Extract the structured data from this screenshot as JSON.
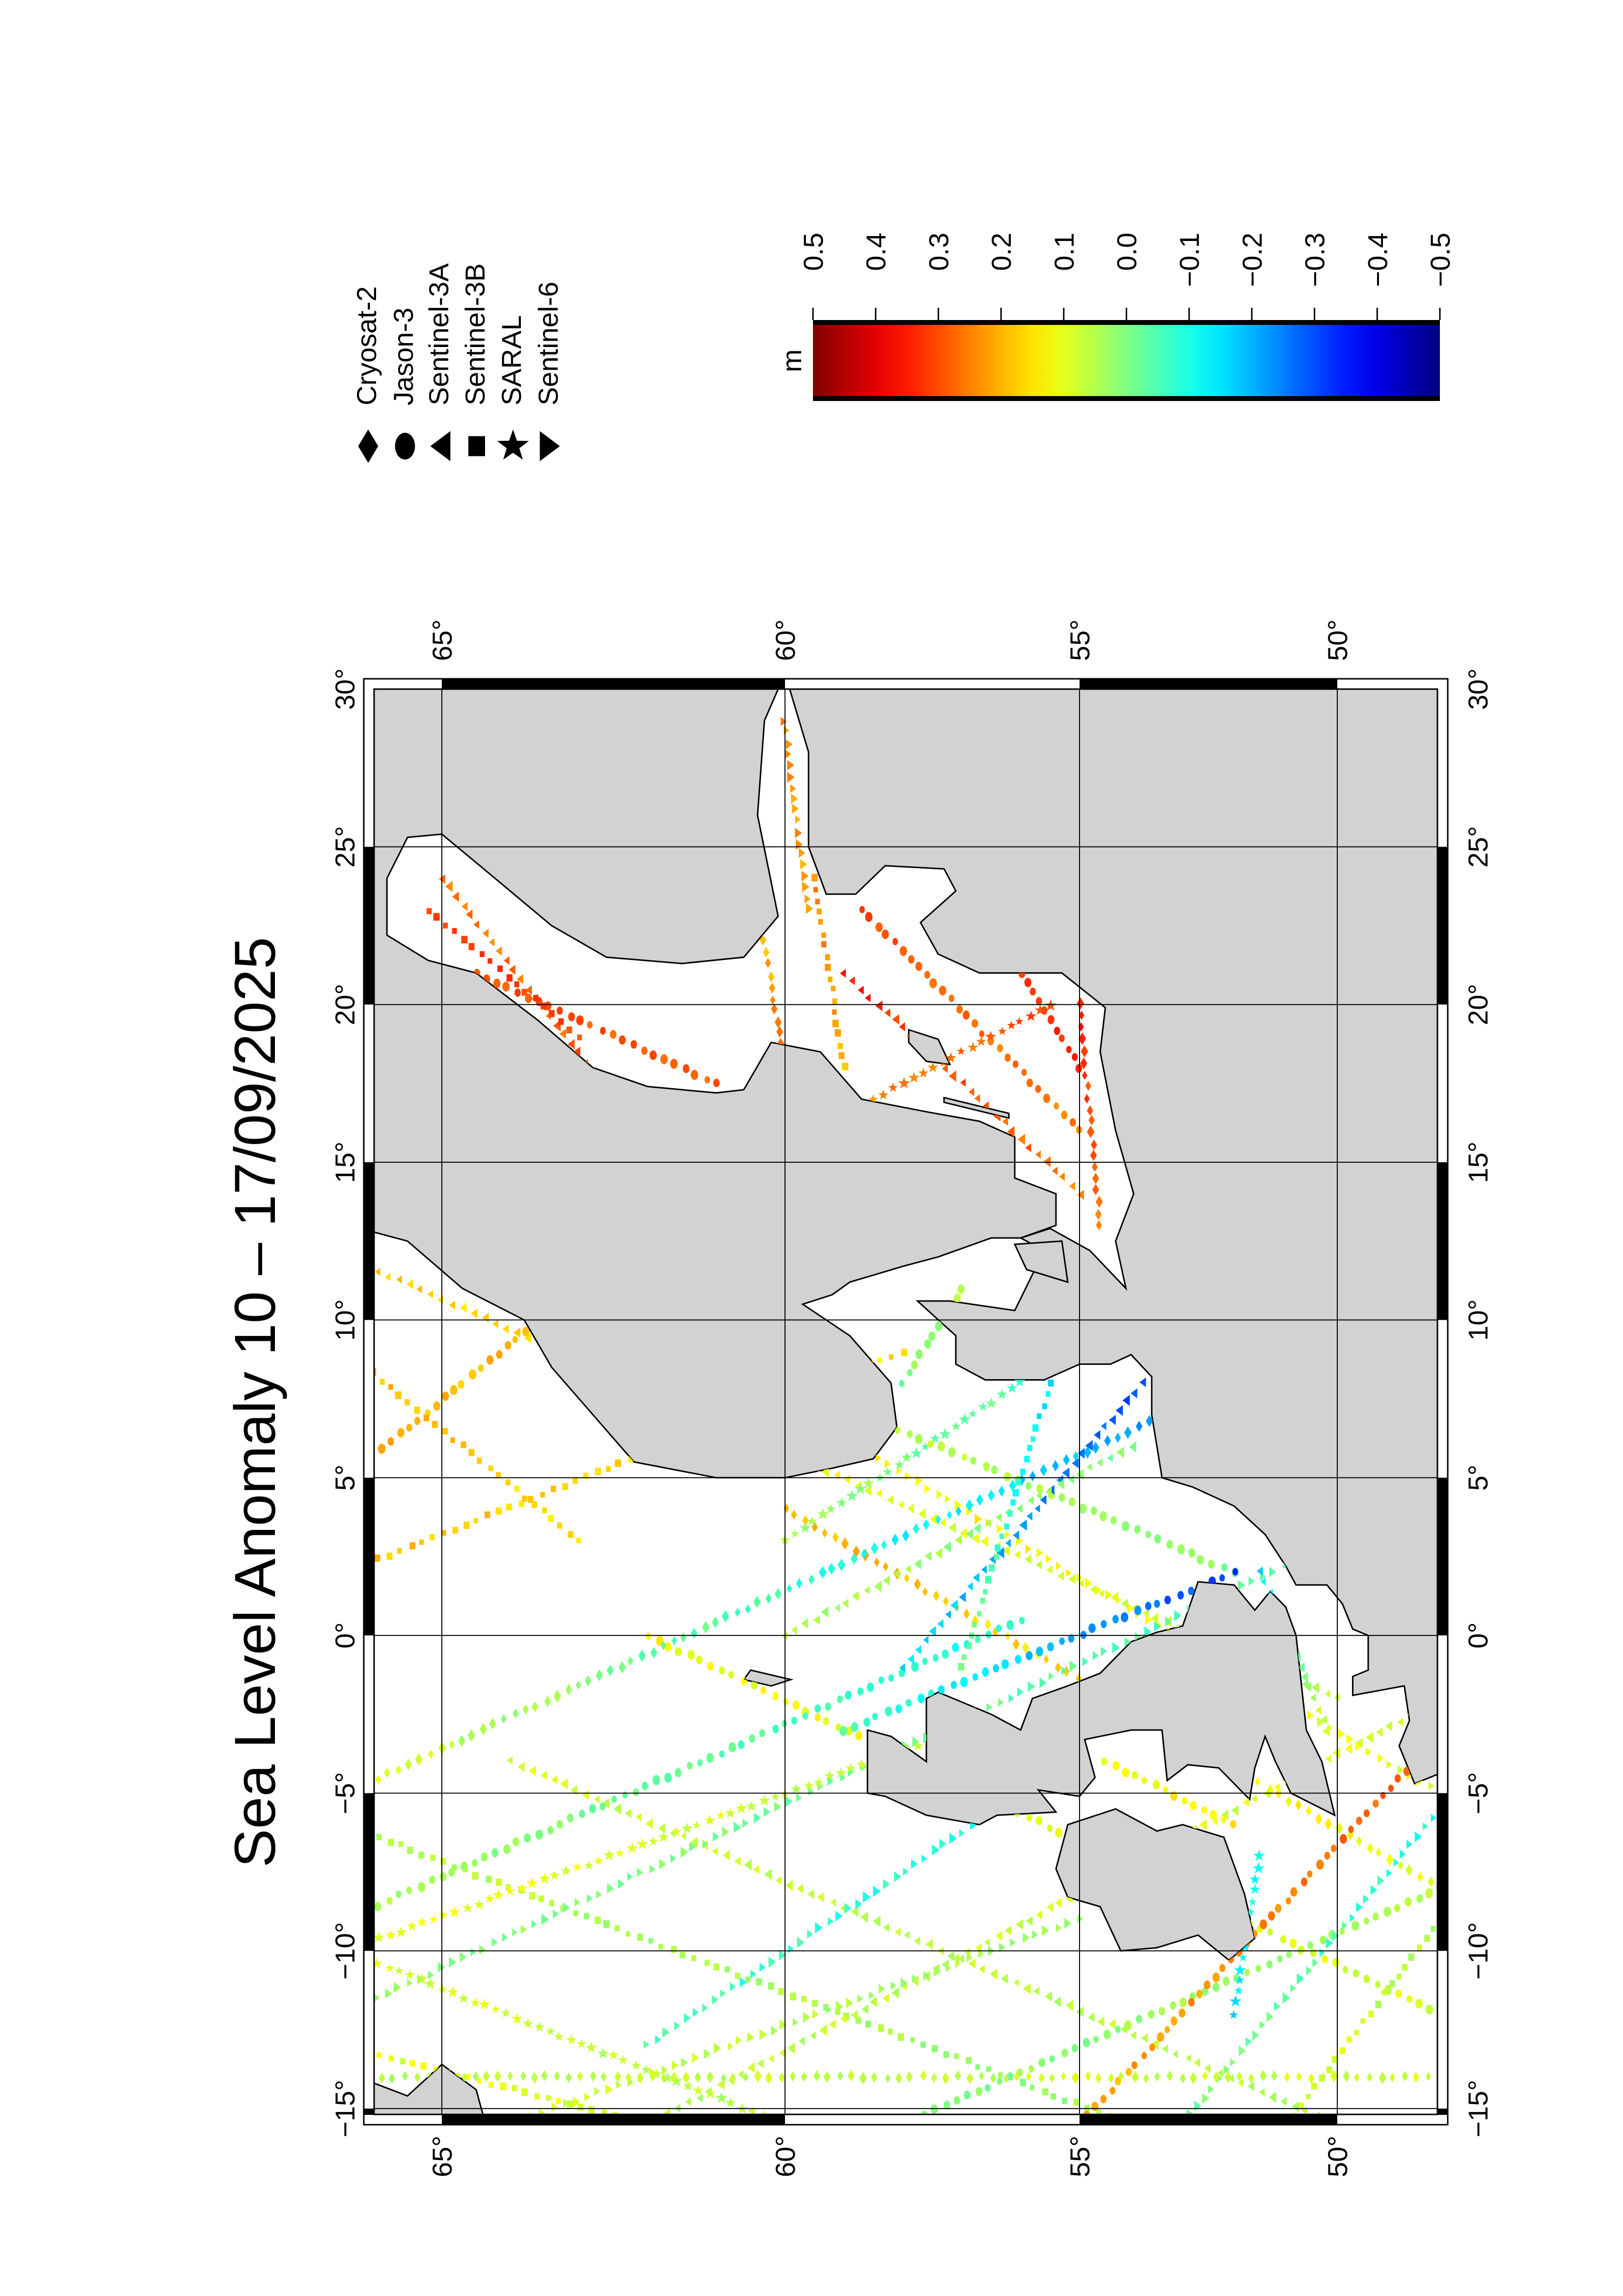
{
  "title": "Sea Level Anomaly 10 – 17/09/2025",
  "colorbar": {
    "unit": "m",
    "range": [
      -0.5,
      0.5
    ],
    "colormap": "jet",
    "tick_labels": [
      "0.5",
      "0.4",
      "0.3",
      "0.2",
      "0.1",
      "0.0",
      "−0.1",
      "−0.2",
      "−0.3",
      "−0.4",
      "−0.5"
    ]
  },
  "legend": [
    {
      "sat": "C2",
      "label": "Cryosat-2",
      "symbol": "diamond"
    },
    {
      "sat": "J3",
      "label": "Jason-3",
      "symbol": "circle"
    },
    {
      "sat": "S3A",
      "label": "Sentinel-3A",
      "symbol": "triangle-left"
    },
    {
      "sat": "S3B",
      "label": "Sentinel-3B",
      "symbol": "square"
    },
    {
      "sat": "SAR",
      "label": "SARAL",
      "symbol": "star"
    },
    {
      "sat": "S6",
      "label": "Sentinel-6",
      "symbol": "triangle-right"
    }
  ],
  "map": {
    "lon_range": [
      -15.2,
      30
    ],
    "lat_range": [
      48,
      66
    ],
    "land_color": "#d2d2d2",
    "sea_color": "#ffffff",
    "lon_ticks": [
      30,
      25,
      20,
      15,
      10,
      5,
      0,
      -5,
      -10,
      -15
    ],
    "lon_labels": [
      "30°",
      "25°",
      "20°",
      "15°",
      "10°",
      "5°",
      "0°",
      "−5°",
      "−10°",
      "−15°"
    ],
    "lat_ticks": [
      65,
      60,
      55,
      50
    ],
    "lat_labels": [
      "65°",
      "60°",
      "55°",
      "50°"
    ]
  },
  "tracks": [
    {
      "sat": "S3A",
      "from": [
        -15.5,
        50
      ],
      "to": [
        -4,
        64
      ],
      "sla": [
        0.05,
        0.08
      ]
    },
    {
      "sat": "S3B",
      "from": [
        -15.5,
        54
      ],
      "to": [
        -6,
        66.4
      ],
      "sla": [
        0.02,
        0.06
      ]
    },
    {
      "sat": "J3",
      "from": [
        -12,
        48
      ],
      "to": [
        0,
        62
      ],
      "sla": [
        0.08,
        0.12
      ]
    },
    {
      "sat": "SAR",
      "from": [
        -15.5,
        60
      ],
      "to": [
        -10,
        66.4
      ],
      "sla": [
        0.05,
        0.1
      ]
    },
    {
      "sat": "C2",
      "from": [
        -8,
        48
      ],
      "to": [
        4,
        60
      ],
      "sla": [
        0.1,
        0.2
      ]
    },
    {
      "sat": "S6",
      "from": [
        -5,
        48
      ],
      "to": [
        10,
        62
      ],
      "sla": [
        0.1,
        0.15
      ]
    },
    {
      "sat": "S3A",
      "from": [
        -2,
        50
      ],
      "to": [
        12,
        66.4
      ],
      "sla": [
        0.05,
        0.18
      ]
    },
    {
      "sat": "J3",
      "from": [
        2,
        52
      ],
      "to": [
        14,
        66.4
      ],
      "sla": [
        0.0,
        0.2
      ]
    },
    {
      "sat": "S3B",
      "from": [
        -15.5,
        62
      ],
      "to": [
        -13,
        66.4
      ],
      "sla": [
        0.1,
        0.1
      ]
    },
    {
      "sat": "S3A",
      "from": [
        -15.5,
        62
      ],
      "to": [
        -2,
        48
      ],
      "sla": [
        0.05,
        0.1
      ]
    },
    {
      "sat": "J3",
      "from": [
        -15.5,
        58
      ],
      "to": [
        -8,
        48
      ],
      "sla": [
        0.0,
        0.05
      ]
    },
    {
      "sat": "S6",
      "from": [
        -12,
        66.4
      ],
      "to": [
        3,
        50
      ],
      "sla": [
        0.02,
        -0.05
      ]
    },
    {
      "sat": "C2",
      "from": [
        -5,
        66.4
      ],
      "to": [
        8,
        52
      ],
      "sla": [
        0.1,
        -0.25
      ]
    },
    {
      "sat": "S3B",
      "from": [
        2,
        66.4
      ],
      "to": [
        9,
        58
      ],
      "sla": [
        0.18,
        0.15
      ]
    },
    {
      "sat": "J3",
      "from": [
        -9,
        66.4
      ],
      "to": [
        0.5,
        56
      ],
      "sla": [
        0.05,
        -0.1
      ]
    },
    {
      "sat": "S6",
      "from": [
        -15.5,
        53
      ],
      "to": [
        -5.5,
        48
      ],
      "sla": [
        0.0,
        -0.1
      ]
    },
    {
      "sat": "J3",
      "from": [
        -15.5,
        55
      ],
      "to": [
        -4,
        48.5
      ],
      "sla": [
        0.2,
        0.28
      ]
    },
    {
      "sat": "S3A",
      "from": [
        8,
        53.8
      ],
      "to": [
        -1,
        58
      ],
      "sla": [
        -0.3,
        -0.15
      ]
    },
    {
      "sat": "J3",
      "from": [
        2,
        52
      ],
      "to": [
        -3,
        59
      ],
      "sla": [
        -0.32,
        -0.05
      ]
    },
    {
      "sat": "SAR",
      "from": [
        -12,
        52
      ],
      "to": [
        -7,
        51.5
      ],
      "sla": [
        -0.15,
        -0.1
      ]
    },
    {
      "sat": "J3",
      "from": [
        5,
        66.4
      ],
      "to": [
        11,
        63
      ],
      "sla": [
        0.2,
        0.18
      ]
    },
    {
      "sat": "S3B",
      "from": [
        3,
        63
      ],
      "to": [
        9,
        66.4
      ],
      "sla": [
        0.15,
        0.2
      ]
    },
    {
      "sat": "S6",
      "from": [
        -13,
        62
      ],
      "to": [
        -5,
        56
      ],
      "sla": [
        -0.05,
        -0.1
      ]
    },
    {
      "sat": "S3A",
      "from": [
        0,
        60
      ],
      "to": [
        6,
        54
      ],
      "sla": [
        0.05,
        0.0
      ]
    },
    {
      "sat": "S3B",
      "from": [
        -1,
        57
      ],
      "to": [
        8,
        55.5
      ],
      "sla": [
        0.0,
        -0.15
      ]
    },
    {
      "sat": "SAR",
      "from": [
        3,
        60
      ],
      "to": [
        8,
        56
      ],
      "sla": [
        0.05,
        -0.05
      ]
    },
    {
      "sat": "J3",
      "from": [
        8,
        58
      ],
      "to": [
        11,
        57
      ],
      "sla": [
        0.0,
        0.05
      ]
    },
    {
      "sat": "S3A",
      "from": [
        17,
        62.5
      ],
      "to": [
        24,
        65
      ],
      "sla": [
        0.3,
        0.25
      ]
    },
    {
      "sat": "J3",
      "from": [
        17.5,
        61
      ],
      "to": [
        21,
        64.5
      ],
      "sla": [
        0.28,
        0.3
      ]
    },
    {
      "sat": "S3B",
      "from": [
        19,
        63
      ],
      "to": [
        23,
        65.2
      ],
      "sla": [
        0.3,
        0.32
      ]
    },
    {
      "sat": "C2",
      "from": [
        18,
        60
      ],
      "to": [
        22,
        60.3
      ],
      "sla": [
        0.25,
        0.2
      ]
    },
    {
      "sat": "S3A",
      "from": [
        14,
        55
      ],
      "to": [
        21,
        59
      ],
      "sla": [
        0.25,
        0.35
      ]
    },
    {
      "sat": "J3",
      "from": [
        16,
        55
      ],
      "to": [
        23,
        58.7
      ],
      "sla": [
        0.25,
        0.3
      ]
    },
    {
      "sat": "SAR",
      "from": [
        20,
        55.5
      ],
      "to": [
        17,
        58.5
      ],
      "sla": [
        0.3,
        0.25
      ]
    },
    {
      "sat": "S3B",
      "from": [
        18,
        59
      ],
      "to": [
        24,
        59.5
      ],
      "sla": [
        0.2,
        0.25
      ]
    },
    {
      "sat": "C2",
      "from": [
        13,
        54.6
      ],
      "to": [
        20,
        55
      ],
      "sla": [
        0.25,
        0.35
      ]
    },
    {
      "sat": "J3",
      "from": [
        21,
        56
      ],
      "to": [
        18,
        55
      ],
      "sla": [
        0.3,
        0.35
      ]
    },
    {
      "sat": "S6",
      "from": [
        23,
        59.6
      ],
      "to": [
        29,
        60
      ],
      "sla": [
        0.2,
        0.25
      ]
    },
    {
      "sat": "S3A",
      "from": [
        -3,
        50.2
      ],
      "to": [
        2,
        51.5
      ],
      "sla": [
        0.1,
        -0.15
      ]
    },
    {
      "sat": "J3",
      "from": [
        -6,
        52
      ],
      "to": [
        -4,
        54.5
      ],
      "sla": [
        0.15,
        0.1
      ]
    },
    {
      "sat": "S6",
      "from": [
        -15.5,
        64
      ],
      "to": [
        -9,
        55
      ],
      "sla": [
        0.08,
        0.03
      ]
    },
    {
      "sat": "C2",
      "from": [
        -14,
        66.4
      ],
      "to": [
        -14,
        48
      ],
      "sla": [
        0.05,
        0.08
      ]
    },
    {
      "sat": "SAR",
      "from": [
        -10,
        66.4
      ],
      "to": [
        -3,
        57
      ],
      "sla": [
        0.12,
        0.05
      ]
    },
    {
      "sat": "S3B",
      "from": [
        -15.5,
        51
      ],
      "to": [
        -9,
        48
      ],
      "sla": [
        0.1,
        0.05
      ]
    }
  ]
}
